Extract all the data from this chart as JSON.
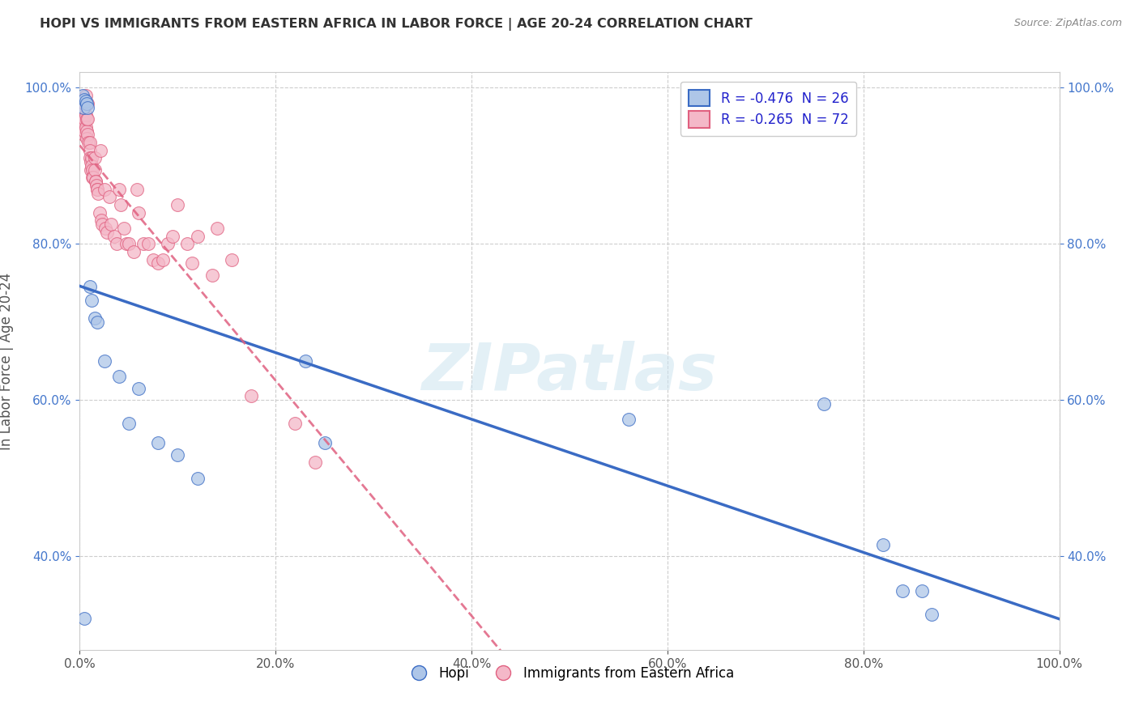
{
  "title": "HOPI VS IMMIGRANTS FROM EASTERN AFRICA IN LABOR FORCE | AGE 20-24 CORRELATION CHART",
  "source": "Source: ZipAtlas.com",
  "xlabel": "",
  "ylabel": "In Labor Force | Age 20-24",
  "xlim": [
    0,
    1.0
  ],
  "ylim": [
    0.28,
    1.02
  ],
  "xticks": [
    0.0,
    0.2,
    0.4,
    0.6,
    0.8,
    1.0
  ],
  "yticks": [
    0.4,
    0.6,
    0.8,
    1.0
  ],
  "hopi_R": -0.476,
  "hopi_N": 26,
  "immigrants_R": -0.265,
  "immigrants_N": 72,
  "hopi_color": "#aec6e8",
  "immigrants_color": "#f4b8c8",
  "hopi_line_color": "#3a6bc4",
  "immigrants_line_color": "#e06080",
  "hopi_x": [
    0.003,
    0.004,
    0.005,
    0.006,
    0.007,
    0.008,
    0.01,
    0.012,
    0.015,
    0.018,
    0.025,
    0.04,
    0.05,
    0.06,
    0.08,
    0.1,
    0.12,
    0.23,
    0.25,
    0.56,
    0.76,
    0.82,
    0.84,
    0.86,
    0.87,
    0.005
  ],
  "hopi_y": [
    0.99,
    0.975,
    0.985,
    0.983,
    0.98,
    0.975,
    0.745,
    0.728,
    0.705,
    0.7,
    0.65,
    0.63,
    0.57,
    0.615,
    0.545,
    0.53,
    0.5,
    0.65,
    0.545,
    0.575,
    0.595,
    0.415,
    0.355,
    0.355,
    0.325,
    0.32
  ],
  "immigrants_x": [
    0.002,
    0.003,
    0.003,
    0.004,
    0.004,
    0.005,
    0.005,
    0.005,
    0.006,
    0.006,
    0.006,
    0.007,
    0.007,
    0.007,
    0.008,
    0.008,
    0.008,
    0.009,
    0.01,
    0.01,
    0.01,
    0.011,
    0.011,
    0.012,
    0.012,
    0.013,
    0.013,
    0.014,
    0.015,
    0.015,
    0.016,
    0.016,
    0.017,
    0.018,
    0.018,
    0.019,
    0.02,
    0.021,
    0.022,
    0.023,
    0.025,
    0.026,
    0.028,
    0.03,
    0.032,
    0.035,
    0.038,
    0.04,
    0.042,
    0.045,
    0.048,
    0.05,
    0.055,
    0.058,
    0.06,
    0.065,
    0.07,
    0.075,
    0.08,
    0.085,
    0.09,
    0.095,
    0.1,
    0.11,
    0.115,
    0.12,
    0.135,
    0.14,
    0.155,
    0.175,
    0.22,
    0.24
  ],
  "immigrants_y": [
    0.96,
    0.97,
    0.96,
    0.95,
    0.94,
    0.98,
    0.96,
    0.945,
    0.99,
    0.965,
    0.95,
    0.96,
    0.945,
    0.935,
    0.98,
    0.96,
    0.94,
    0.93,
    0.93,
    0.92,
    0.91,
    0.905,
    0.895,
    0.91,
    0.9,
    0.895,
    0.885,
    0.885,
    0.91,
    0.895,
    0.88,
    0.88,
    0.875,
    0.87,
    0.87,
    0.865,
    0.84,
    0.92,
    0.83,
    0.825,
    0.87,
    0.82,
    0.815,
    0.86,
    0.825,
    0.81,
    0.8,
    0.87,
    0.85,
    0.82,
    0.8,
    0.8,
    0.79,
    0.87,
    0.84,
    0.8,
    0.8,
    0.78,
    0.775,
    0.78,
    0.8,
    0.81,
    0.85,
    0.8,
    0.775,
    0.81,
    0.76,
    0.82,
    0.78,
    0.605,
    0.57,
    0.52
  ],
  "watermark": "ZIPatlas",
  "background_color": "#ffffff",
  "grid_color": "#c8c8c8"
}
